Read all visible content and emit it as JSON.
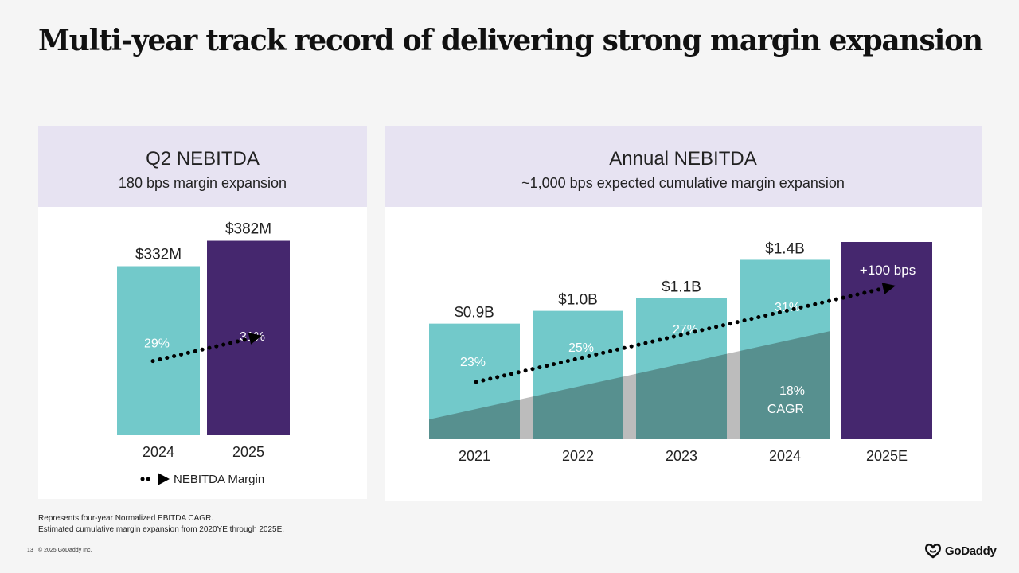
{
  "title": "Multi-year track record of delivering strong margin expansion",
  "left_panel": {
    "title": "Q2 NEBITDA",
    "subtitle": "180 bps margin expansion"
  },
  "right_panel": {
    "title": "Annual NEBITDA",
    "subtitle": "~1,000 bps expected cumulative margin expansion"
  },
  "colors": {
    "teal": "#72c9ca",
    "purple": "#45276e",
    "dark_teal": "#57908f",
    "gray_gap": "#bcbcbc",
    "header_bg": "#e7e3f2"
  },
  "chart_data": [
    {
      "type": "bar",
      "title": "Q2 NEBITDA",
      "categories": [
        "2024",
        "2025"
      ],
      "values": [
        332,
        382
      ],
      "value_labels": [
        "$332M",
        "$382M"
      ],
      "margin_labels": [
        "29%",
        "31%"
      ],
      "bar_colors": [
        "#72c9ca",
        "#45276e"
      ],
      "ylim": [
        0,
        400
      ],
      "legend": {
        "label": "NEBITDA Margin",
        "position": "bottom"
      }
    },
    {
      "type": "bar",
      "title": "Annual NEBITDA",
      "categories": [
        "2021",
        "2022",
        "2023",
        "2024",
        "2025E"
      ],
      "values": [
        0.9,
        1.0,
        1.1,
        1.4,
        1.54
      ],
      "value_labels": [
        "$0.9B",
        "$1.0B",
        "$1.1B",
        "$1.4B",
        ""
      ],
      "margin_labels": [
        "23%",
        "25%",
        "27%",
        "31%",
        ""
      ],
      "bar_colors": [
        "#72c9ca",
        "#72c9ca",
        "#72c9ca",
        "#72c9ca",
        "#45276e"
      ],
      "ylim": [
        0,
        1.54
      ],
      "annotation": "+100 bps",
      "cagr": {
        "value": "18%",
        "label": "CAGR"
      }
    }
  ],
  "footnotes": [
    "Represents four-year Normalized EBITDA CAGR.",
    "Estimated cumulative margin expansion from 2020YE through 2025E."
  ],
  "page_number": "13",
  "copyright": "© 2025 GoDaddy Inc.",
  "logo": {
    "text": "GoDaddy",
    "icon": "godaddy-logo-icon"
  }
}
